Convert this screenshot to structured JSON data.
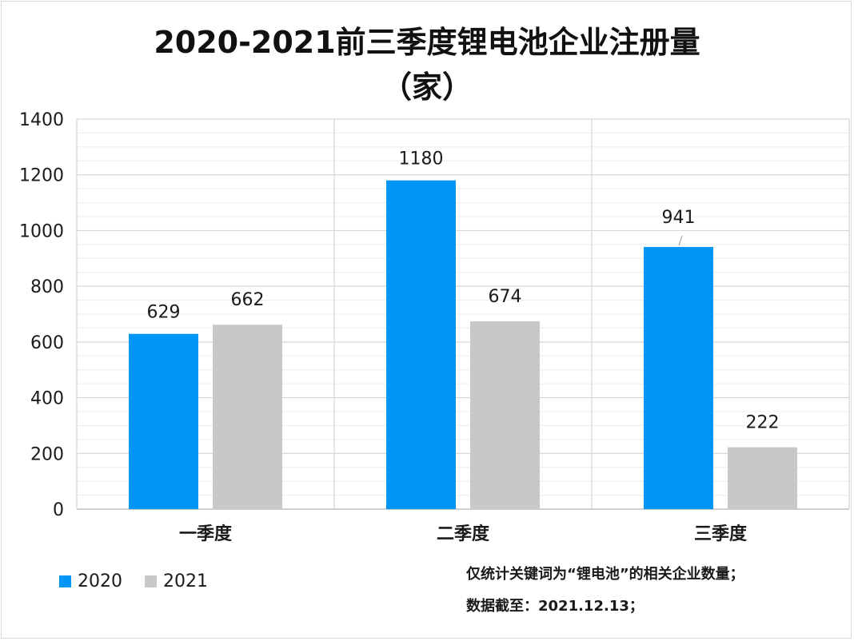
{
  "chart_data": {
    "type": "bar",
    "title_line1": "2020-2021前三季度锂电池企业注册量",
    "title_line2": "（家）",
    "categories": [
      "一季度",
      "二季度",
      "三季度"
    ],
    "series": [
      {
        "name": "2020",
        "values": [
          629,
          1180,
          941
        ],
        "color": "#0096f5"
      },
      {
        "name": "2021",
        "values": [
          662,
          674,
          222
        ],
        "color": "#c8c8c8"
      }
    ],
    "ylim": [
      0,
      1400
    ],
    "yticks": [
      0,
      200,
      400,
      600,
      800,
      1000,
      1200,
      1400
    ],
    "grid": true,
    "legend_position": "bottom-left",
    "data_labels": true
  },
  "notes": {
    "line1": "仅统计关键词为“锂电池”的相关企业数量；",
    "line2": "数据截至：2021.12.13；"
  }
}
